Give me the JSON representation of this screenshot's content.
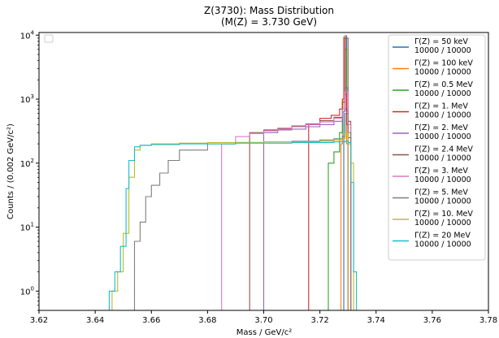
{
  "chart_data": {
    "type": "line",
    "title_line1": "Z(3730): Mass Distribution",
    "title_line2": "(M(Z) = 3.730 GeV)",
    "xlabel": "Mass / GeV/c²",
    "ylabel": "Counts / (0.002 GeV/c²)",
    "xlim": [
      3.62,
      3.78
    ],
    "ylim": [
      0.5,
      11000
    ],
    "yscale": "log",
    "x_ticks": [
      "3.62",
      "3.64",
      "3.66",
      "3.68",
      "3.70",
      "3.72",
      "3.74",
      "3.76",
      "3.78"
    ],
    "y_ticks": [
      {
        "base": "10",
        "exp": "0",
        "value": 1
      },
      {
        "base": "10",
        "exp": "1",
        "value": 10
      },
      {
        "base": "10",
        "exp": "2",
        "value": 100
      },
      {
        "base": "10",
        "exp": "3",
        "value": 1000
      },
      {
        "base": "10",
        "exp": "4",
        "value": 10000
      }
    ],
    "legend_position": "upper right",
    "series": [
      {
        "name": "Γ(Z) = 50 keV",
        "counts_label": "10000 / 10000",
        "color": "#1f77b4",
        "x": [
          3.728,
          3.7285,
          3.729,
          3.7295,
          3.73
        ],
        "y": [
          0.5,
          650,
          9800,
          650,
          0.5
        ]
      },
      {
        "name": "Γ(Z) = 100 keV",
        "counts_label": "10000 / 10000",
        "color": "#ff7f0e",
        "x": [
          3.727,
          3.7275,
          3.728,
          3.7285,
          3.729,
          3.7295,
          3.73,
          3.7305,
          3.731
        ],
        "y": [
          0.5,
          200,
          700,
          9500,
          700,
          200,
          0.5,
          0.5,
          0.5
        ]
      },
      {
        "name": "Γ(Z) = 0.5 MeV",
        "counts_label": "10000 / 10000",
        "color": "#2ca02c",
        "x": [
          3.722,
          3.723,
          3.725,
          3.727,
          3.728,
          3.729,
          3.7295,
          3.73,
          3.731
        ],
        "y": [
          0.5,
          100,
          150,
          300,
          900,
          6000,
          700,
          200,
          0.5
        ]
      },
      {
        "name": "Γ(Z) = 1. MeV",
        "counts_label": "10000 / 10000",
        "color": "#d62728",
        "x": [
          3.715,
          3.716,
          3.72,
          3.724,
          3.727,
          3.728,
          3.7285,
          3.729,
          3.7295,
          3.73,
          3.731
        ],
        "y": [
          0.5,
          400,
          500,
          560,
          700,
          1000,
          9000,
          1200,
          400,
          250,
          0.5
        ]
      },
      {
        "name": "Γ(Z) = 2. MeV",
        "counts_label": "10000 / 10000",
        "color": "#9467bd",
        "x": [
          3.699,
          3.7,
          3.705,
          3.71,
          3.715,
          3.72,
          3.725,
          3.728,
          3.729,
          3.73,
          3.731
        ],
        "y": [
          0.5,
          300,
          330,
          340,
          370,
          400,
          450,
          700,
          1500,
          400,
          0.5
        ]
      },
      {
        "name": "Γ(Z) = 2.4 MeV",
        "counts_label": "10000 / 10000",
        "color": "#8c564b",
        "x": [
          3.694,
          3.695,
          3.7,
          3.705,
          3.71,
          3.715,
          3.72,
          3.725,
          3.728,
          3.729,
          3.73,
          3.731
        ],
        "y": [
          0.5,
          300,
          330,
          350,
          380,
          410,
          460,
          520,
          900,
          9000,
          450,
          0.5
        ]
      },
      {
        "name": "Γ(Z) = 3. MeV",
        "counts_label": "10000 / 10000",
        "color": "#e377c2",
        "x": [
          3.684,
          3.685,
          3.69,
          3.695,
          3.7,
          3.705,
          3.71,
          3.715,
          3.72,
          3.725,
          3.728,
          3.729,
          3.73,
          3.731
        ],
        "y": [
          0.5,
          200,
          260,
          290,
          320,
          340,
          370,
          400,
          440,
          500,
          700,
          1300,
          400,
          0.5
        ]
      },
      {
        "name": "Γ(Z) = 5. MeV",
        "counts_label": "10000 / 10000",
        "color": "#7f7f7f",
        "x": [
          3.653,
          3.654,
          3.656,
          3.658,
          3.66,
          3.663,
          3.666,
          3.67,
          3.68,
          3.69,
          3.7,
          3.71,
          3.72,
          3.725,
          3.728,
          3.729,
          3.73,
          3.731
        ],
        "y": [
          0.5,
          6,
          12,
          30,
          45,
          70,
          110,
          160,
          200,
          210,
          215,
          220,
          230,
          240,
          260,
          600,
          300,
          0.5
        ]
      },
      {
        "name": "Γ(Z) = 10. MeV",
        "counts_label": "10000 / 10000",
        "color": "#bcbd22",
        "x": [
          3.645,
          3.646,
          3.648,
          3.65,
          3.652,
          3.654,
          3.656,
          3.66,
          3.67,
          3.68,
          3.69,
          3.7,
          3.71,
          3.72,
          3.725,
          3.728,
          3.729,
          3.73,
          3.731,
          3.732
        ],
        "y": [
          0.5,
          1,
          2,
          8,
          60,
          160,
          190,
          200,
          205,
          210,
          210,
          215,
          215,
          220,
          230,
          240,
          300,
          200,
          100,
          0.5
        ]
      },
      {
        "name": "Γ(Z) = 20 MeV",
        "counts_label": "10000 / 10000",
        "color": "#17becf",
        "x": [
          3.644,
          3.645,
          3.647,
          3.649,
          3.651,
          3.652,
          3.654,
          3.656,
          3.66,
          3.67,
          3.68,
          3.69,
          3.7,
          3.71,
          3.72,
          3.725,
          3.728,
          3.729,
          3.73,
          3.731,
          3.732,
          3.733
        ],
        "y": [
          0.5,
          1,
          2,
          5,
          40,
          110,
          180,
          190,
          195,
          200,
          200,
          205,
          205,
          210,
          210,
          215,
          215,
          220,
          210,
          50,
          2,
          0.5
        ]
      }
    ]
  }
}
